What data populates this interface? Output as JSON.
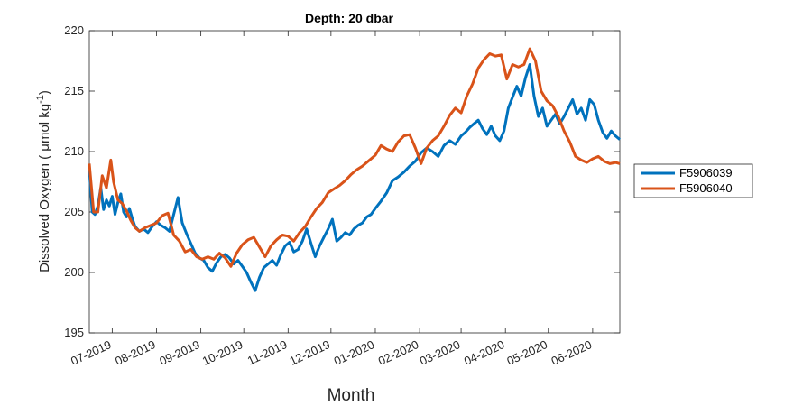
{
  "chart_data": {
    "type": "line",
    "title": "Depth: 20 dbar",
    "xlabel": "Month",
    "ylabel": "Dissolved Oxygen (   μmol kg",
    "ylabel_sup": "-1",
    "ylabel_close": ")",
    "ylim": [
      195,
      220
    ],
    "yticks": [
      195,
      200,
      205,
      210,
      215,
      220
    ],
    "xlim": [
      "2019-06-15",
      "2020-06-20"
    ],
    "xticks": [
      "2019-07-01",
      "2019-08-01",
      "2019-09-01",
      "2019-10-01",
      "2019-11-01",
      "2019-12-01",
      "2020-01-01",
      "2020-02-01",
      "2020-03-01",
      "2020-04-01",
      "2020-05-01",
      "2020-06-01"
    ],
    "xtick_labels": [
      "07-2019",
      "08-2019",
      "09-2019",
      "10-2019",
      "11-2019",
      "12-2019",
      "01-2020",
      "02-2020",
      "03-2020",
      "04-2020",
      "05-2020",
      "06-2020"
    ],
    "grid": false,
    "legend_position": "outside-right",
    "series": [
      {
        "name": "F5906039",
        "color": "#0072BD",
        "x": [
          "2019-06-15",
          "2019-06-17",
          "2019-06-19",
          "2019-06-21",
          "2019-06-23",
          "2019-06-25",
          "2019-06-27",
          "2019-06-29",
          "2019-07-01",
          "2019-07-03",
          "2019-07-05",
          "2019-07-07",
          "2019-07-09",
          "2019-07-11",
          "2019-07-13",
          "2019-07-15",
          "2019-07-17",
          "2019-07-20",
          "2019-07-23",
          "2019-07-26",
          "2019-07-29",
          "2019-08-01",
          "2019-08-04",
          "2019-08-07",
          "2019-08-10",
          "2019-08-13",
          "2019-08-16",
          "2019-08-19",
          "2019-08-22",
          "2019-08-25",
          "2019-08-28",
          "2019-08-31",
          "2019-09-03",
          "2019-09-06",
          "2019-09-09",
          "2019-09-12",
          "2019-09-15",
          "2019-09-18",
          "2019-09-21",
          "2019-09-24",
          "2019-09-27",
          "2019-09-30",
          "2019-10-03",
          "2019-10-06",
          "2019-10-09",
          "2019-10-12",
          "2019-10-15",
          "2019-10-18",
          "2019-10-21",
          "2019-10-24",
          "2019-10-27",
          "2019-10-30",
          "2019-11-02",
          "2019-11-05",
          "2019-11-08",
          "2019-11-11",
          "2019-11-14",
          "2019-11-17",
          "2019-11-20",
          "2019-11-23",
          "2019-11-26",
          "2019-11-29",
          "2019-12-02",
          "2019-12-05",
          "2019-12-08",
          "2019-12-11",
          "2019-12-14",
          "2019-12-17",
          "2019-12-20",
          "2019-12-23",
          "2019-12-26",
          "2019-12-29",
          "2020-01-01",
          "2020-01-05",
          "2020-01-09",
          "2020-01-13",
          "2020-01-17",
          "2020-01-21",
          "2020-01-25",
          "2020-01-29",
          "2020-02-02",
          "2020-02-06",
          "2020-02-10",
          "2020-02-14",
          "2020-02-18",
          "2020-02-22",
          "2020-02-26",
          "2020-03-01",
          "2020-03-04",
          "2020-03-07",
          "2020-03-10",
          "2020-03-13",
          "2020-03-16",
          "2020-03-19",
          "2020-03-22",
          "2020-03-25",
          "2020-03-28",
          "2020-03-31",
          "2020-04-03",
          "2020-04-06",
          "2020-04-09",
          "2020-04-12",
          "2020-04-15",
          "2020-04-18",
          "2020-04-21",
          "2020-04-24",
          "2020-04-27",
          "2020-04-30",
          "2020-05-03",
          "2020-05-06",
          "2020-05-09",
          "2020-05-12",
          "2020-05-15",
          "2020-05-18",
          "2020-05-21",
          "2020-05-24",
          "2020-05-27",
          "2020-05-30",
          "2020-06-02",
          "2020-06-05",
          "2020-06-08",
          "2020-06-11",
          "2020-06-14",
          "2020-06-17",
          "2020-06-20"
        ],
        "y": [
          208.5,
          205.0,
          204.8,
          205.5,
          207.0,
          205.2,
          206.0,
          205.5,
          206.3,
          204.8,
          205.8,
          206.5,
          205.0,
          204.6,
          205.3,
          204.5,
          203.8,
          203.4,
          203.6,
          203.3,
          203.8,
          204.2,
          203.9,
          203.7,
          203.4,
          204.8,
          206.2,
          204.1,
          203.2,
          202.4,
          201.6,
          201.2,
          201.0,
          200.4,
          200.1,
          200.8,
          201.3,
          201.5,
          201.2,
          200.7,
          201.0,
          200.5,
          200.0,
          199.2,
          198.5,
          199.6,
          200.4,
          200.7,
          201.0,
          200.6,
          201.5,
          202.2,
          202.5,
          201.7,
          201.9,
          202.6,
          203.6,
          202.4,
          201.3,
          202.2,
          202.9,
          203.6,
          204.4,
          202.6,
          202.9,
          203.3,
          203.1,
          203.6,
          203.9,
          204.1,
          204.6,
          204.8,
          205.3,
          205.9,
          206.6,
          207.6,
          207.9,
          208.3,
          208.8,
          209.2,
          209.9,
          210.3,
          210.0,
          209.6,
          210.5,
          210.9,
          210.6,
          211.3,
          211.6,
          212.0,
          212.3,
          212.6,
          211.9,
          211.4,
          212.1,
          211.3,
          210.9,
          211.7,
          213.6,
          214.5,
          215.4,
          214.6,
          216.1,
          217.2,
          214.6,
          212.9,
          213.6,
          212.1,
          212.6,
          213.1,
          212.3,
          212.9,
          213.6,
          214.3,
          213.1,
          213.6,
          212.6,
          214.3,
          213.9,
          212.6,
          211.6,
          211.1,
          211.7,
          211.3,
          211.0
        ]
      },
      {
        "name": "F5906040",
        "color": "#D95319",
        "x": [
          "2019-06-15",
          "2019-06-18",
          "2019-06-21",
          "2019-06-24",
          "2019-06-27",
          "2019-06-30",
          "2019-07-02",
          "2019-07-05",
          "2019-07-08",
          "2019-07-11",
          "2019-07-14",
          "2019-07-17",
          "2019-07-20",
          "2019-07-24",
          "2019-07-28",
          "2019-08-01",
          "2019-08-05",
          "2019-08-09",
          "2019-08-13",
          "2019-08-17",
          "2019-08-21",
          "2019-08-25",
          "2019-08-29",
          "2019-09-02",
          "2019-09-06",
          "2019-09-10",
          "2019-09-14",
          "2019-09-18",
          "2019-09-22",
          "2019-09-26",
          "2019-09-30",
          "2019-10-04",
          "2019-10-08",
          "2019-10-12",
          "2019-10-16",
          "2019-10-20",
          "2019-10-24",
          "2019-10-28",
          "2019-11-01",
          "2019-11-05",
          "2019-11-09",
          "2019-11-13",
          "2019-11-17",
          "2019-11-21",
          "2019-11-25",
          "2019-11-29",
          "2019-12-03",
          "2019-12-07",
          "2019-12-11",
          "2019-12-15",
          "2019-12-19",
          "2019-12-23",
          "2019-12-27",
          "2020-01-01",
          "2020-01-05",
          "2020-01-09",
          "2020-01-13",
          "2020-01-17",
          "2020-01-21",
          "2020-01-25",
          "2020-01-29",
          "2020-02-02",
          "2020-02-06",
          "2020-02-10",
          "2020-02-14",
          "2020-02-18",
          "2020-02-22",
          "2020-02-26",
          "2020-03-01",
          "2020-03-05",
          "2020-03-09",
          "2020-03-13",
          "2020-03-17",
          "2020-03-21",
          "2020-03-25",
          "2020-03-29",
          "2020-04-02",
          "2020-04-06",
          "2020-04-10",
          "2020-04-14",
          "2020-04-18",
          "2020-04-22",
          "2020-04-26",
          "2020-04-30",
          "2020-05-04",
          "2020-05-08",
          "2020-05-12",
          "2020-05-16",
          "2020-05-20",
          "2020-05-24",
          "2020-05-28",
          "2020-06-01",
          "2020-06-05",
          "2020-06-09",
          "2020-06-13",
          "2020-06-17",
          "2020-06-20"
        ],
        "y": [
          209.0,
          205.0,
          205.0,
          208.0,
          207.0,
          209.3,
          207.5,
          206.0,
          205.7,
          205.1,
          204.3,
          203.7,
          203.4,
          203.7,
          203.9,
          204.1,
          204.7,
          204.9,
          203.1,
          202.6,
          201.7,
          201.9,
          201.3,
          201.1,
          201.3,
          201.1,
          201.6,
          201.2,
          200.5,
          201.6,
          202.3,
          202.7,
          202.9,
          202.1,
          201.3,
          202.2,
          202.7,
          203.1,
          203.0,
          202.6,
          203.3,
          203.8,
          204.6,
          205.3,
          205.8,
          206.6,
          206.9,
          207.2,
          207.6,
          208.1,
          208.5,
          208.8,
          209.2,
          209.7,
          210.5,
          210.2,
          210.0,
          210.8,
          211.3,
          211.4,
          210.3,
          209.0,
          210.3,
          210.9,
          211.3,
          212.1,
          213.0,
          213.6,
          213.2,
          214.6,
          215.6,
          216.9,
          217.6,
          218.1,
          217.9,
          218.0,
          216.0,
          217.2,
          217.0,
          217.2,
          218.5,
          217.5,
          215.0,
          214.2,
          213.8,
          212.9,
          211.7,
          210.8,
          209.6,
          209.3,
          209.1,
          209.4,
          209.6,
          209.2,
          209.0,
          209.1,
          209.0
        ]
      }
    ]
  }
}
